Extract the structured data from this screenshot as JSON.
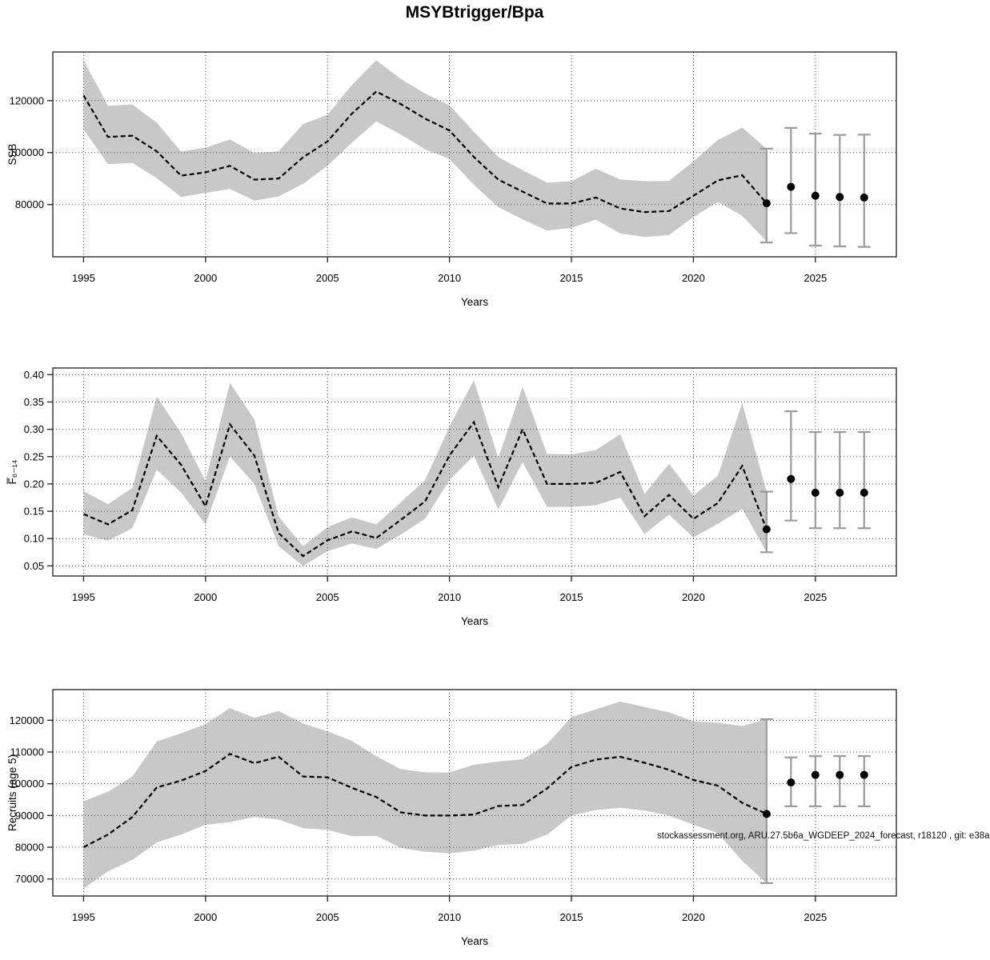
{
  "title": "MSYBtrigger/Bpa",
  "footer": "stockassessment.org, ARU.27.5b6a_WGDEEP_2024_forecast, r18120 , git: e38a",
  "chart_data": [
    {
      "type": "line",
      "name": "ssb",
      "xlabel": "Years",
      "ylabel": "SSB",
      "x": [
        1995,
        1996,
        1997,
        1998,
        1999,
        2000,
        2001,
        2002,
        2003,
        2004,
        2005,
        2006,
        2007,
        2008,
        2009,
        2010,
        2011,
        2012,
        2013,
        2014,
        2015,
        2016,
        2017,
        2018,
        2019,
        2020,
        2021,
        2022,
        2023
      ],
      "values": [
        122000,
        106000,
        106500,
        100500,
        91100,
        92400,
        94900,
        89600,
        90000,
        98200,
        104300,
        115000,
        123500,
        118700,
        113100,
        108500,
        98300,
        89600,
        85000,
        80400,
        80400,
        82700,
        78500,
        77100,
        77500,
        83400,
        89300,
        91300,
        80500
      ],
      "ci_upper": [
        135500,
        118000,
        118500,
        111500,
        100400,
        101900,
        105100,
        99800,
        100500,
        111000,
        114500,
        126000,
        135500,
        128400,
        122700,
        118200,
        108000,
        98300,
        93200,
        88400,
        89000,
        93800,
        89700,
        89000,
        89100,
        96600,
        104800,
        109600,
        101500
      ],
      "ci_lower": [
        109000,
        95500,
        96000,
        90200,
        82900,
        84500,
        86000,
        81500,
        83100,
        88000,
        94900,
        103800,
        112000,
        107000,
        101300,
        97600,
        87600,
        79000,
        74300,
        70000,
        71000,
        74200,
        68900,
        67500,
        68300,
        75200,
        81000,
        75700,
        65800
      ],
      "forecast": {
        "x": [
          2023,
          2024,
          2025,
          2026,
          2027
        ],
        "values": [
          80500,
          86800,
          83400,
          82900,
          82700
        ],
        "ci_lower": [
          65400,
          69000,
          64200,
          63900,
          63700
        ],
        "ci_upper": [
          101500,
          109500,
          107300,
          106800,
          106900
        ]
      },
      "xticks": [
        1995,
        2000,
        2005,
        2010,
        2015,
        2020,
        2025
      ],
      "yticks": [
        80000,
        100000,
        120000
      ],
      "ytick_labels": [
        "80000",
        "100000",
        "120000"
      ],
      "xlim": [
        1993.74,
        2028.32
      ],
      "ylim": [
        59900,
        138700
      ],
      "grid": true,
      "band_color": "#c8c8c8",
      "line_color": "#000000",
      "errorbar_color": "#9c9c9c"
    },
    {
      "type": "line",
      "name": "fishing-mortality",
      "xlabel": "Years",
      "ylabel": "F̅₆₋₁₄",
      "x": [
        1995,
        1996,
        1997,
        1998,
        1999,
        2000,
        2001,
        2002,
        2003,
        2004,
        2005,
        2006,
        2007,
        2008,
        2009,
        2010,
        2011,
        2012,
        2013,
        2014,
        2015,
        2016,
        2017,
        2018,
        2019,
        2020,
        2021,
        2022,
        2023
      ],
      "values": [
        0.145,
        0.126,
        0.152,
        0.288,
        0.235,
        0.159,
        0.309,
        0.252,
        0.11,
        0.068,
        0.097,
        0.113,
        0.101,
        0.134,
        0.168,
        0.252,
        0.313,
        0.194,
        0.3,
        0.2,
        0.2,
        0.202,
        0.222,
        0.141,
        0.18,
        0.136,
        0.165,
        0.233,
        0.117
      ],
      "ci_upper": [
        0.187,
        0.163,
        0.193,
        0.36,
        0.293,
        0.205,
        0.385,
        0.318,
        0.14,
        0.086,
        0.121,
        0.139,
        0.126,
        0.166,
        0.207,
        0.305,
        0.39,
        0.247,
        0.378,
        0.255,
        0.254,
        0.262,
        0.291,
        0.182,
        0.237,
        0.179,
        0.215,
        0.348,
        0.186
      ],
      "ci_lower": [
        0.108,
        0.096,
        0.119,
        0.226,
        0.184,
        0.126,
        0.25,
        0.2,
        0.086,
        0.05,
        0.077,
        0.091,
        0.081,
        0.107,
        0.136,
        0.207,
        0.252,
        0.153,
        0.24,
        0.158,
        0.158,
        0.161,
        0.175,
        0.108,
        0.144,
        0.102,
        0.127,
        0.154,
        0.075
      ],
      "forecast": {
        "x": [
          2023,
          2024,
          2025,
          2026,
          2027
        ],
        "values": [
          0.117,
          0.209,
          0.184,
          0.184,
          0.184
        ],
        "ci_lower": [
          0.075,
          0.133,
          0.119,
          0.119,
          0.119
        ],
        "ci_upper": [
          0.186,
          0.333,
          0.295,
          0.295,
          0.295
        ]
      },
      "xticks": [
        1995,
        2000,
        2005,
        2010,
        2015,
        2020,
        2025
      ],
      "yticks": [
        0.05,
        0.1,
        0.15,
        0.2,
        0.25,
        0.3,
        0.35,
        0.4
      ],
      "ytick_labels": [
        "0.05",
        "0.10",
        "0.15",
        "0.20",
        "0.25",
        "0.30",
        "0.35",
        "0.40"
      ],
      "xlim": [
        1993.74,
        2028.32
      ],
      "ylim": [
        0.0315,
        0.4122
      ],
      "grid": true,
      "band_color": "#c8c8c8",
      "line_color": "#000000",
      "errorbar_color": "#9c9c9c"
    },
    {
      "type": "line",
      "name": "recruitment",
      "xlabel": "Years",
      "ylabel": "Recruits (age 5)",
      "x": [
        1995,
        1996,
        1997,
        1998,
        1999,
        2000,
        2001,
        2002,
        2003,
        2004,
        2005,
        2006,
        2007,
        2008,
        2009,
        2010,
        2011,
        2012,
        2013,
        2014,
        2015,
        2016,
        2017,
        2018,
        2019,
        2020,
        2021,
        2022,
        2023
      ],
      "values": [
        80000,
        84000,
        89500,
        98800,
        101000,
        104000,
        109400,
        106500,
        108500,
        102300,
        102000,
        98700,
        95800,
        91000,
        90000,
        90000,
        90300,
        93000,
        93300,
        98500,
        105300,
        107600,
        108500,
        106600,
        104400,
        101200,
        99400,
        94000,
        90500
      ],
      "ci_upper": [
        94500,
        97500,
        102300,
        113300,
        115900,
        118800,
        123800,
        120800,
        122900,
        119000,
        116500,
        113500,
        108700,
        104600,
        103600,
        103500,
        106000,
        107000,
        107700,
        112500,
        121000,
        123400,
        125900,
        124200,
        122500,
        119600,
        119200,
        118200,
        120300
      ],
      "ci_lower": [
        67000,
        72400,
        76000,
        81500,
        84000,
        87100,
        87900,
        89600,
        88700,
        86000,
        85500,
        83500,
        83600,
        79800,
        78600,
        78100,
        78900,
        80700,
        81100,
        84000,
        90000,
        91700,
        92400,
        91500,
        90000,
        87100,
        84500,
        75700,
        68700
      ],
      "forecast": {
        "x": [
          2023,
          2024,
          2025,
          2026,
          2027
        ],
        "values": [
          90500,
          100400,
          102800,
          102800,
          102800
        ],
        "ci_lower": [
          68700,
          92900,
          92900,
          92900,
          92900
        ],
        "ci_upper": [
          120300,
          108300,
          108700,
          108700,
          108700
        ]
      },
      "xticks": [
        1995,
        2000,
        2005,
        2010,
        2015,
        2020,
        2025
      ],
      "yticks": [
        70000,
        80000,
        90000,
        100000,
        110000,
        120000
      ],
      "ytick_labels": [
        "70000",
        "80000",
        "90000",
        "100000",
        "110000",
        "120000"
      ],
      "xlim": [
        1993.74,
        2028.32
      ],
      "ylim": [
        64640,
        129656
      ],
      "grid": true,
      "band_color": "#c8c8c8",
      "line_color": "#000000",
      "errorbar_color": "#9c9c9c"
    }
  ]
}
